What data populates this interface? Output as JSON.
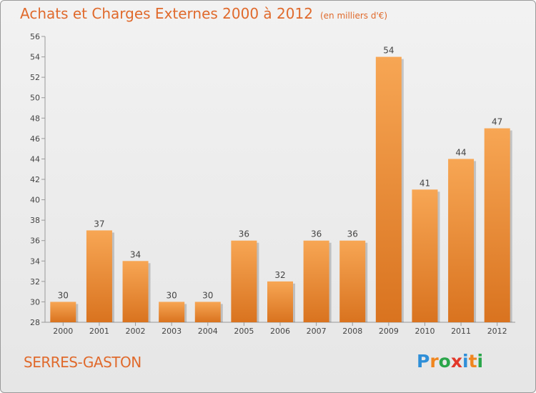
{
  "chart_data": {
    "type": "bar",
    "title": "Achats et Charges Externes 2000 à 2012",
    "subtitle": "(en milliers d'€)",
    "categories": [
      "2000",
      "2001",
      "2002",
      "2003",
      "2004",
      "2005",
      "2006",
      "2007",
      "2008",
      "2009",
      "2010",
      "2011",
      "2012"
    ],
    "values": [
      30,
      37,
      34,
      30,
      30,
      36,
      32,
      36,
      36,
      54,
      41,
      44,
      47
    ],
    "ylim": [
      28,
      56
    ],
    "yticks": [
      28,
      30,
      32,
      34,
      36,
      38,
      40,
      42,
      44,
      46,
      48,
      50,
      52,
      54,
      56
    ],
    "grid": false,
    "xlabel": "",
    "ylabel": ""
  },
  "footer": {
    "commune": "SERRES-GASTON"
  },
  "brand": {
    "letters": [
      "P",
      "r",
      "o",
      "x",
      "i",
      "t",
      "i"
    ],
    "colors": [
      "#2f8fd8",
      "#f0861f",
      "#2aa64a",
      "#e2382a",
      "#2f8fd8",
      "#f0861f",
      "#2aa64a"
    ]
  },
  "colors": {
    "bar_light": "#f7a654",
    "bar_dark": "#d9731f",
    "accent": "#e06a2c"
  }
}
